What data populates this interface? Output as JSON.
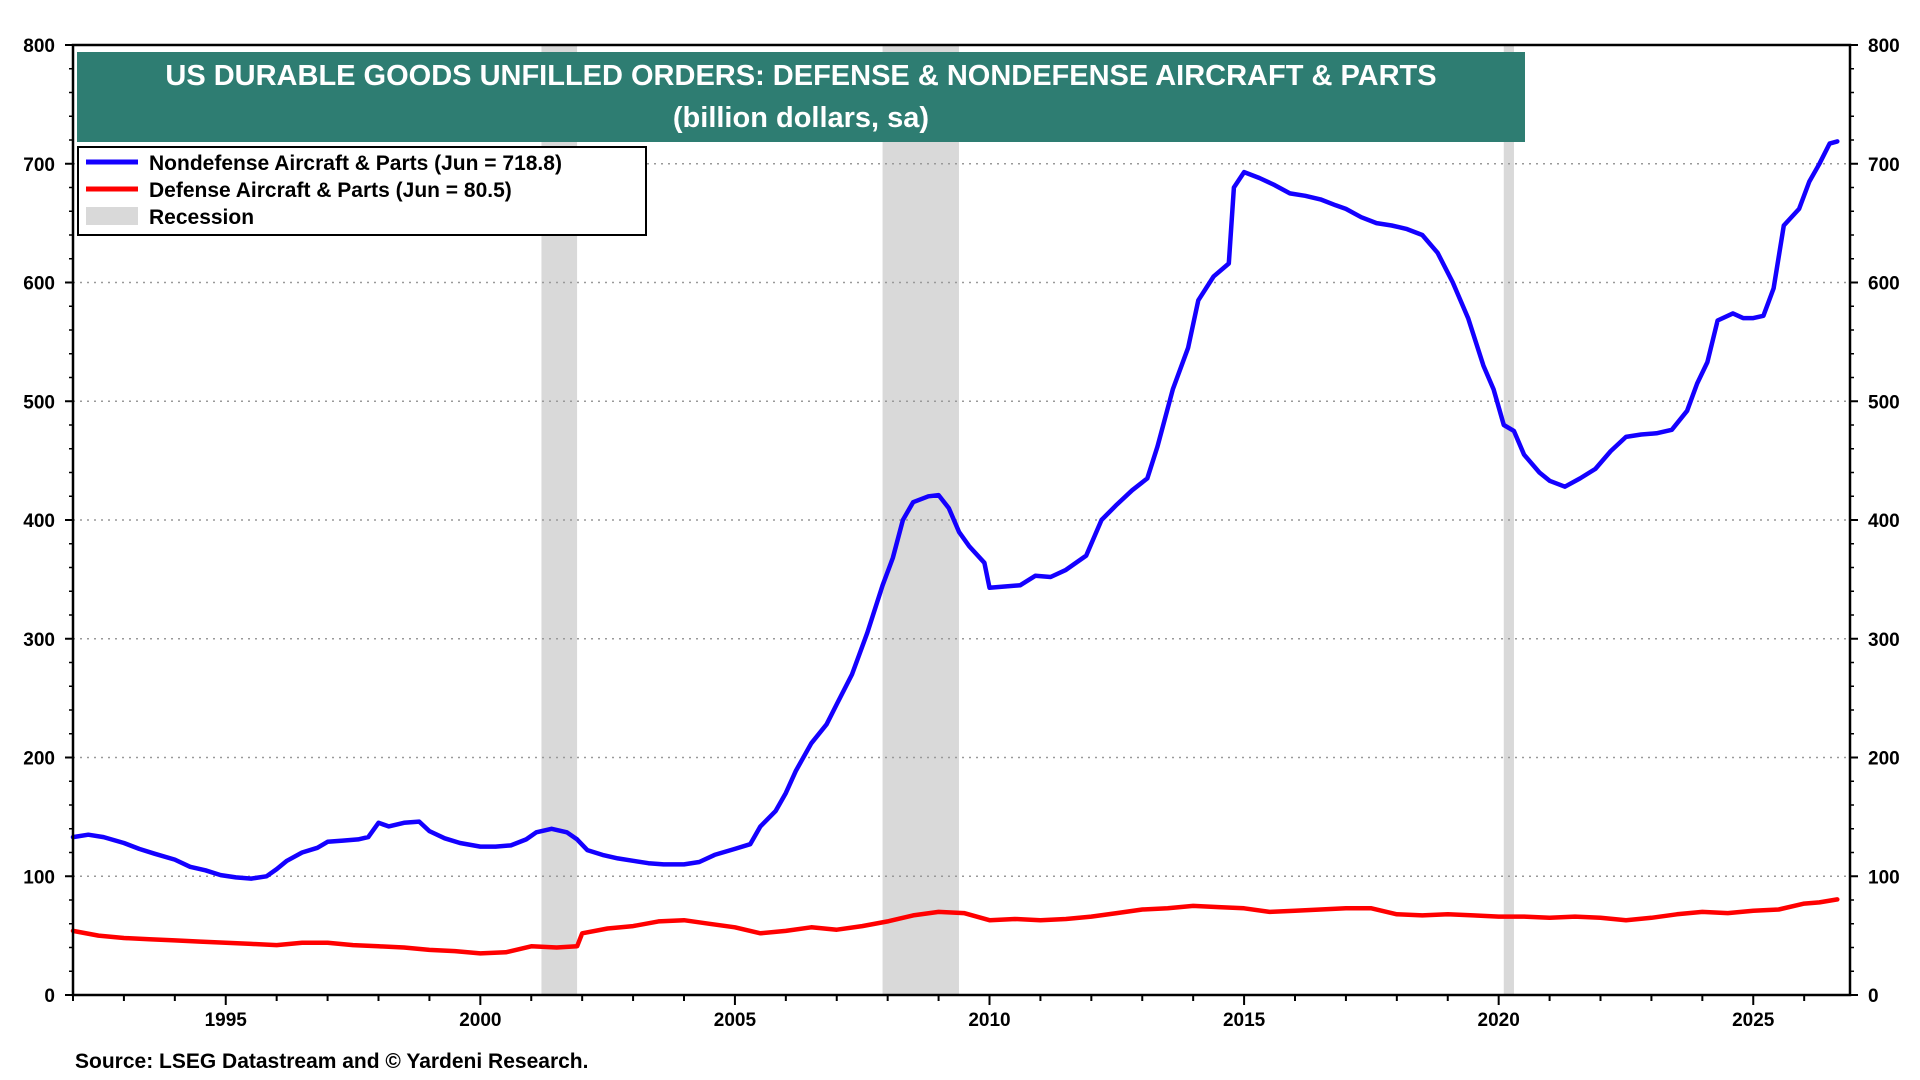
{
  "colors": {
    "nondefense": "#1400ff",
    "defense": "#ff0000",
    "recession": "#d9d9d9",
    "title_bg": "#2e7d72",
    "title_text": "#ffffff",
    "grid": "#999999"
  },
  "source": "Source: LSEG Datastream and © Yardeni Research.",
  "chart_data": {
    "type": "line",
    "title": "US DURABLE GOODS UNFILLED ORDERS: DEFENSE & NONDEFENSE AIRCRAFT & PARTS",
    "subtitle": "(billion dollars, sa)",
    "xlabel": "",
    "ylabel": "",
    "xlim": [
      1992.0,
      2026.9
    ],
    "ylim": [
      0,
      800
    ],
    "x_ticks": [
      1995,
      2000,
      2005,
      2010,
      2015,
      2020,
      2025
    ],
    "x_tick_labels": [
      "1995",
      "2000",
      "2005",
      "2010",
      "2015",
      "2020",
      "2025"
    ],
    "y_ticks": [
      0,
      100,
      200,
      300,
      400,
      500,
      600,
      700,
      800
    ],
    "y_tick_labels": [
      "0",
      "100",
      "200",
      "300",
      "400",
      "500",
      "600",
      "700",
      "800"
    ],
    "y_axis_both_sides": true,
    "grid": "horizontal dotted",
    "legend_position": "top-left",
    "legend": [
      {
        "label": "Nondefense Aircraft & Parts (Jun = 718.8)",
        "kind": "line",
        "series": 0
      },
      {
        "label": "Defense Aircraft & Parts (Jun = 80.5)",
        "kind": "line",
        "series": 1
      },
      {
        "label": "Recession",
        "kind": "band"
      }
    ],
    "recessions": [
      [
        2001.2,
        2001.9
      ],
      [
        2007.9,
        2009.4
      ],
      [
        2020.1,
        2020.3
      ]
    ],
    "series": [
      {
        "name": "Nondefense Aircraft & Parts",
        "color": "#1400ff",
        "points": [
          [
            1992.0,
            133
          ],
          [
            1992.3,
            135
          ],
          [
            1992.6,
            133
          ],
          [
            1993.0,
            128
          ],
          [
            1993.3,
            123
          ],
          [
            1993.6,
            119
          ],
          [
            1994.0,
            114
          ],
          [
            1994.3,
            108
          ],
          [
            1994.6,
            105
          ],
          [
            1994.9,
            101
          ],
          [
            1995.2,
            99
          ],
          [
            1995.5,
            98
          ],
          [
            1995.8,
            100
          ],
          [
            1996.0,
            106
          ],
          [
            1996.2,
            113
          ],
          [
            1996.5,
            120
          ],
          [
            1996.8,
            124
          ],
          [
            1997.0,
            129
          ],
          [
            1997.3,
            130
          ],
          [
            1997.6,
            131
          ],
          [
            1997.8,
            133
          ],
          [
            1998.0,
            145
          ],
          [
            1998.2,
            142
          ],
          [
            1998.5,
            145
          ],
          [
            1998.8,
            146
          ],
          [
            1999.0,
            138
          ],
          [
            1999.3,
            132
          ],
          [
            1999.6,
            128
          ],
          [
            2000.0,
            125
          ],
          [
            2000.3,
            125
          ],
          [
            2000.6,
            126
          ],
          [
            2000.9,
            131
          ],
          [
            2001.1,
            137
          ],
          [
            2001.4,
            140
          ],
          [
            2001.7,
            137
          ],
          [
            2001.9,
            131
          ],
          [
            2002.1,
            122
          ],
          [
            2002.4,
            118
          ],
          [
            2002.7,
            115
          ],
          [
            2003.0,
            113
          ],
          [
            2003.3,
            111
          ],
          [
            2003.6,
            110
          ],
          [
            2004.0,
            110
          ],
          [
            2004.3,
            112
          ],
          [
            2004.6,
            118
          ],
          [
            2005.0,
            123
          ],
          [
            2005.3,
            127
          ],
          [
            2005.5,
            142
          ],
          [
            2005.8,
            155
          ],
          [
            2006.0,
            170
          ],
          [
            2006.2,
            189
          ],
          [
            2006.5,
            212
          ],
          [
            2006.8,
            228
          ],
          [
            2007.0,
            245
          ],
          [
            2007.3,
            270
          ],
          [
            2007.6,
            305
          ],
          [
            2007.9,
            345
          ],
          [
            2008.1,
            368
          ],
          [
            2008.3,
            400
          ],
          [
            2008.5,
            415
          ],
          [
            2008.8,
            420
          ],
          [
            2009.0,
            421
          ],
          [
            2009.2,
            410
          ],
          [
            2009.4,
            390
          ],
          [
            2009.6,
            378
          ],
          [
            2009.9,
            364
          ],
          [
            2010.0,
            343
          ],
          [
            2010.3,
            344
          ],
          [
            2010.6,
            345
          ],
          [
            2010.9,
            353
          ],
          [
            2011.2,
            352
          ],
          [
            2011.5,
            358
          ],
          [
            2011.9,
            370
          ],
          [
            2012.2,
            400
          ],
          [
            2012.5,
            413
          ],
          [
            2012.8,
            425
          ],
          [
            2013.1,
            435
          ],
          [
            2013.3,
            462
          ],
          [
            2013.6,
            510
          ],
          [
            2013.9,
            545
          ],
          [
            2014.1,
            585
          ],
          [
            2014.4,
            605
          ],
          [
            2014.7,
            616
          ],
          [
            2014.8,
            680
          ],
          [
            2015.0,
            693
          ],
          [
            2015.3,
            688
          ],
          [
            2015.6,
            682
          ],
          [
            2015.9,
            675
          ],
          [
            2016.2,
            673
          ],
          [
            2016.5,
            670
          ],
          [
            2016.8,
            665
          ],
          [
            2017.0,
            662
          ],
          [
            2017.3,
            655
          ],
          [
            2017.6,
            650
          ],
          [
            2017.9,
            648
          ],
          [
            2018.2,
            645
          ],
          [
            2018.5,
            640
          ],
          [
            2018.8,
            625
          ],
          [
            2019.1,
            600
          ],
          [
            2019.4,
            570
          ],
          [
            2019.7,
            530
          ],
          [
            2019.9,
            510
          ],
          [
            2020.1,
            480
          ],
          [
            2020.3,
            475
          ],
          [
            2020.5,
            455
          ],
          [
            2020.8,
            440
          ],
          [
            2021.0,
            433
          ],
          [
            2021.3,
            428
          ],
          [
            2021.6,
            435
          ],
          [
            2021.9,
            443
          ],
          [
            2022.2,
            458
          ],
          [
            2022.5,
            470
          ],
          [
            2022.8,
            472
          ],
          [
            2023.1,
            473
          ],
          [
            2023.4,
            476
          ],
          [
            2023.7,
            492
          ],
          [
            2023.9,
            515
          ],
          [
            2024.1,
            533
          ],
          [
            2024.3,
            568
          ],
          [
            2024.6,
            574
          ],
          [
            2024.8,
            570
          ],
          [
            2025.0,
            570
          ],
          [
            2025.2,
            572
          ],
          [
            2025.4,
            595
          ],
          [
            2025.6,
            648
          ],
          [
            2025.9,
            662
          ],
          [
            2026.1,
            685
          ],
          [
            2026.3,
            700
          ],
          [
            2026.5,
            717
          ],
          [
            2026.65,
            718.8
          ]
        ]
      },
      {
        "name": "Defense Aircraft & Parts",
        "color": "#ff0000",
        "points": [
          [
            1992.0,
            54
          ],
          [
            1992.5,
            50
          ],
          [
            1993.0,
            48
          ],
          [
            1993.5,
            47
          ],
          [
            1994.0,
            46
          ],
          [
            1994.5,
            45
          ],
          [
            1995.0,
            44
          ],
          [
            1995.5,
            43
          ],
          [
            1996.0,
            42
          ],
          [
            1996.5,
            44
          ],
          [
            1997.0,
            44
          ],
          [
            1997.5,
            42
          ],
          [
            1998.0,
            41
          ],
          [
            1998.5,
            40
          ],
          [
            1999.0,
            38
          ],
          [
            1999.5,
            37
          ],
          [
            2000.0,
            35
          ],
          [
            2000.5,
            36
          ],
          [
            2001.0,
            41
          ],
          [
            2001.5,
            40
          ],
          [
            2001.9,
            41
          ],
          [
            2002.0,
            52
          ],
          [
            2002.5,
            56
          ],
          [
            2003.0,
            58
          ],
          [
            2003.5,
            62
          ],
          [
            2004.0,
            63
          ],
          [
            2004.5,
            60
          ],
          [
            2005.0,
            57
          ],
          [
            2005.5,
            52
          ],
          [
            2006.0,
            54
          ],
          [
            2006.5,
            57
          ],
          [
            2007.0,
            55
          ],
          [
            2007.5,
            58
          ],
          [
            2008.0,
            62
          ],
          [
            2008.5,
            67
          ],
          [
            2009.0,
            70
          ],
          [
            2009.5,
            69
          ],
          [
            2010.0,
            63
          ],
          [
            2010.5,
            64
          ],
          [
            2011.0,
            63
          ],
          [
            2011.5,
            64
          ],
          [
            2012.0,
            66
          ],
          [
            2012.5,
            69
          ],
          [
            2013.0,
            72
          ],
          [
            2013.5,
            73
          ],
          [
            2014.0,
            75
          ],
          [
            2014.5,
            74
          ],
          [
            2015.0,
            73
          ],
          [
            2015.5,
            70
          ],
          [
            2016.0,
            71
          ],
          [
            2016.5,
            72
          ],
          [
            2017.0,
            73
          ],
          [
            2017.5,
            73
          ],
          [
            2018.0,
            68
          ],
          [
            2018.5,
            67
          ],
          [
            2019.0,
            68
          ],
          [
            2019.5,
            67
          ],
          [
            2020.0,
            66
          ],
          [
            2020.5,
            66
          ],
          [
            2021.0,
            65
          ],
          [
            2021.5,
            66
          ],
          [
            2022.0,
            65
          ],
          [
            2022.5,
            63
          ],
          [
            2023.0,
            65
          ],
          [
            2023.5,
            68
          ],
          [
            2024.0,
            70
          ],
          [
            2024.5,
            69
          ],
          [
            2025.0,
            71
          ],
          [
            2025.5,
            72
          ],
          [
            2026.0,
            77
          ],
          [
            2026.3,
            78
          ],
          [
            2026.65,
            80.5
          ]
        ]
      }
    ]
  }
}
